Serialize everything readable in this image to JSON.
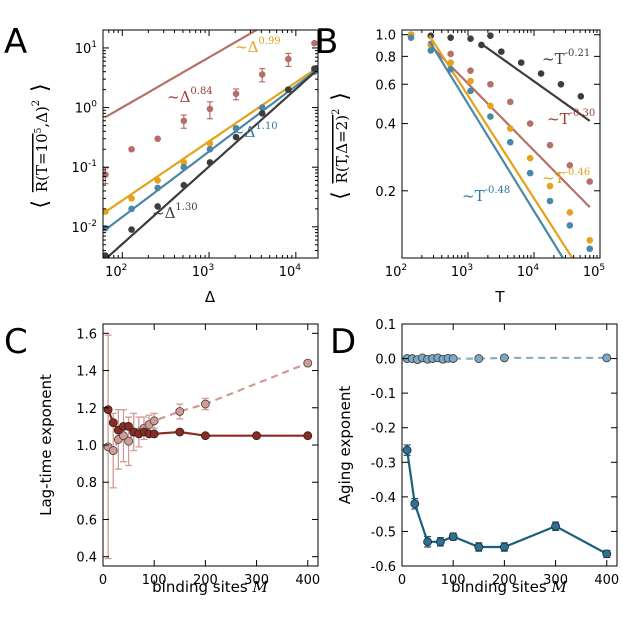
{
  "panels": [
    {
      "id": "A",
      "label": "A",
      "chart_data": {
        "type": "scatter",
        "scale": "log-log",
        "xlabel": "Δ",
        "ylabel": "⟨ R(T=10⁵, Δ)² ⟩",
        "ylabel_parts": [
          "⟨",
          "R(T=10",
          "5",
          ",Δ)",
          "2",
          "⟩"
        ],
        "xlim": [
          60,
          18000
        ],
        "ylim": [
          0.003,
          20
        ],
        "xticks": [
          {
            "v": 100,
            "b": "10",
            "e": "2"
          },
          {
            "v": 1000,
            "b": "10",
            "e": "3"
          },
          {
            "v": 10000,
            "b": "10",
            "e": "4"
          }
        ],
        "yticks": [
          {
            "v": 0.01,
            "b": "10",
            "e": "-2"
          },
          {
            "v": 0.1,
            "b": "10",
            "e": "-1"
          },
          {
            "v": 1,
            "b": "10",
            "e": "0"
          },
          {
            "v": 10,
            "b": "10",
            "e": "1"
          }
        ],
        "series": [
          {
            "name": "~Δ^0.84",
            "color": "#b5706a",
            "x": [
              64,
              128,
              256,
              512,
              1024,
              2048,
              4096,
              8192,
              16384
            ],
            "y": [
              0.075,
              0.2,
              0.3,
              0.6,
              0.95,
              1.7,
              3.6,
              6.5,
              12
            ],
            "yerr_up": [
              0.022,
              0,
              0,
              0.15,
              0.3,
              0.35,
              0.9,
              1.6,
              0
            ],
            "fit": {
              "coef": 0.021,
              "exp": 0.84,
              "x0": 64,
              "x1": 17000
            }
          },
          {
            "name": "~Δ^0.99",
            "color": "#e5a21a",
            "x": [
              64,
              128,
              256,
              512,
              1024,
              2048,
              4096,
              8192,
              16384
            ],
            "y": [
              0.018,
              0.03,
              0.06,
              0.12,
              0.25,
              0.45,
              1.0,
              2.0,
              4.3
            ],
            "yerr_up": [
              0,
              0,
              0,
              0,
              0,
              0,
              0,
              0,
              0
            ],
            "fit": {
              "coef": 0.00029,
              "exp": 0.99,
              "x0": 64,
              "x1": 17000
            }
          },
          {
            "name": "~Δ^1.10",
            "color": "#4a88a8",
            "x": [
              64,
              128,
              256,
              512,
              1024,
              2048,
              4096,
              8192,
              16384
            ],
            "y": [
              0.0095,
              0.02,
              0.045,
              0.1,
              0.2,
              0.45,
              1.0,
              2.0,
              4.0
            ],
            "yerr_up": [
              0,
              0,
              0,
              0,
              0,
              0,
              0,
              0,
              0
            ],
            "fit": {
              "coef": 9.2e-05,
              "exp": 1.1,
              "x0": 64,
              "x1": 17000
            }
          },
          {
            "name": "~Δ^1.30",
            "color": "#3d3d3d",
            "x": [
              64,
              128,
              256,
              512,
              1024,
              2048,
              4096,
              8192,
              16384
            ],
            "y": [
              0.0033,
              0.009,
              0.022,
              0.05,
              0.12,
              0.32,
              0.8,
              2.0,
              4.5
            ],
            "yerr_up": [
              0,
              0,
              0,
              0,
              0,
              0,
              0,
              0,
              0
            ],
            "fit": {
              "coef": 1.29e-05,
              "exp": 1.3,
              "x0": 64,
              "x1": 17000
            }
          }
        ],
        "annotations": [
          {
            "text": "~Δ",
            "exp": "0.84",
            "color": "#9e3a33"
          },
          {
            "text": "~Δ",
            "exp": "0.99",
            "color": "#e5a21a"
          },
          {
            "text": "~Δ",
            "exp": "1.10",
            "color": "#2f7a9e"
          },
          {
            "text": "~Δ",
            "exp": "1.30",
            "color": "#3d3d3d"
          }
        ]
      }
    },
    {
      "id": "B",
      "label": "B",
      "chart_data": {
        "type": "scatter",
        "scale": "log-log",
        "xlabel": "T",
        "ylabel": "⟨ R(T, Δ=2)² ⟩",
        "ylabel_parts": [
          "⟨",
          "R(T,Δ=2)",
          "2",
          "⟩"
        ],
        "xlim": [
          100,
          100000
        ],
        "ylim": [
          0.1,
          1.05
        ],
        "xticks": [
          {
            "v": 100,
            "b": "10",
            "e": "2"
          },
          {
            "v": 1000,
            "b": "10",
            "e": "3"
          },
          {
            "v": 10000,
            "b": "10",
            "e": "4"
          },
          {
            "v": 100000,
            "b": "10",
            "e": "5"
          }
        ],
        "yticks": [
          {
            "v": 0.2,
            "label": "0.2"
          },
          {
            "v": 0.4,
            "label": "0.4"
          },
          {
            "v": 0.6,
            "label": "0.6"
          },
          {
            "v": 0.8,
            "label": "0.8"
          },
          {
            "v": 1.0,
            "label": "1.0"
          }
        ],
        "series": [
          {
            "name": "~T^-0.21",
            "color": "#3d3d3d",
            "x": [
              137,
              273,
              546,
              1092,
              2184
            ],
            "y": [
              1.0,
              0.99,
              0.97,
              0.96,
              0.99
            ],
            "fit": null
          },
          {
            "name": "~T^-0.21 (fit)",
            "color": "#3d3d3d",
            "x": [
              1600,
              3200,
              6400,
              12800,
              25600,
              51200
            ],
            "y": [
              0.9,
              0.84,
              0.75,
              0.67,
              0.6,
              0.53
            ],
            "fit": {
              "coef": 4.28,
              "exp": -0.21,
              "x0": 1500,
              "x1": 70000
            }
          },
          {
            "name": "~T^-0.30",
            "color": "#b5706a",
            "x": [
              137,
              273,
              546,
              1092,
              2184,
              4368,
              8736,
              17472,
              34944,
              69888
            ],
            "y": [
              1.0,
              0.91,
              0.82,
              0.69,
              0.6,
              0.5,
              0.4,
              0.32,
              0.26,
              0.22
            ],
            "fit": {
              "coef": 4.8,
              "exp": -0.3,
              "x0": 260,
              "x1": 70000
            }
          },
          {
            "name": "~T^-0.46",
            "color": "#e5a21a",
            "x": [
              137,
              273,
              546,
              1092,
              2184,
              4368,
              8736,
              17472,
              34944,
              69888
            ],
            "y": [
              1.0,
              0.9,
              0.75,
              0.62,
              0.48,
              0.38,
              0.28,
              0.21,
              0.16,
              0.12
            ],
            "fit": {
              "coef": 12.8,
              "exp": -0.46,
              "x0": 260,
              "x1": 70000
            }
          },
          {
            "name": "~T^-0.48",
            "color": "#4a88a8",
            "x": [
              137,
              273,
              546,
              1092,
              2184,
              4368,
              8736,
              17472,
              34944,
              69888
            ],
            "y": [
              0.97,
              0.85,
              0.7,
              0.56,
              0.43,
              0.33,
              0.24,
              0.18,
              0.14,
              0.11
            ],
            "fit": {
              "coef": 13.5,
              "exp": -0.48,
              "x0": 260,
              "x1": 70000
            }
          }
        ],
        "annotations": [
          {
            "text": "~T",
            "exp": "-0.21",
            "color": "#3d3d3d"
          },
          {
            "text": "~T",
            "exp": "-0.30",
            "color": "#9e3a33"
          },
          {
            "text": "~T",
            "exp": "-0.46",
            "color": "#e5a21a"
          },
          {
            "text": "~T",
            "exp": "-0.48",
            "color": "#2f7a9e"
          }
        ]
      }
    },
    {
      "id": "C",
      "label": "C",
      "chart_data": {
        "type": "line",
        "xlabel": "binding sites M",
        "xlabel_text": "binding sites",
        "xlabel_var": "M",
        "ylabel": "Lag-time exponent",
        "xlim": [
          0,
          420
        ],
        "ylim": [
          0.35,
          1.65
        ],
        "xticks": [
          0,
          100,
          200,
          300,
          400
        ],
        "yticks": [
          "0.4",
          "0.6",
          "0.8",
          "1.0",
          "1.2",
          "1.4",
          "1.6"
        ],
        "series": [
          {
            "name": "solid",
            "style": "solid",
            "color": "#8e2a22",
            "fill": "#8e2a22",
            "alpha": 1,
            "x": [
              10,
              20,
              30,
              40,
              50,
              60,
              70,
              80,
              90,
              100,
              150,
              200,
              300,
              400
            ],
            "y": [
              1.19,
              1.12,
              1.08,
              1.1,
              1.1,
              1.07,
              1.06,
              1.07,
              1.06,
              1.06,
              1.07,
              1.05,
              1.05,
              1.05
            ],
            "yerr": [
              0,
              0,
              0,
              0,
              0,
              0,
              0,
              0,
              0,
              0,
              0,
              0,
              0,
              0
            ]
          },
          {
            "name": "dashed",
            "style": "dashed",
            "color": "#c98a82",
            "fill": "#c98a82",
            "alpha": 0.85,
            "x": [
              10,
              20,
              30,
              40,
              50,
              60,
              70,
              80,
              90,
              100,
              150,
              200,
              400
            ],
            "y": [
              0.99,
              0.97,
              1.03,
              1.05,
              1.02,
              1.07,
              1.07,
              1.09,
              1.11,
              1.13,
              1.18,
              1.22,
              1.44
            ],
            "yerr": [
              0.6,
              0.2,
              0.16,
              0.14,
              0.13,
              0.1,
              0.08,
              0.06,
              0.05,
              0.04,
              0.04,
              0.03,
              0
            ]
          }
        ]
      }
    },
    {
      "id": "D",
      "label": "D",
      "chart_data": {
        "type": "line",
        "xlabel": "binding sites M",
        "xlabel_text": "binding sites",
        "xlabel_var": "M",
        "ylabel": "Aging exponent",
        "xlim": [
          0,
          420
        ],
        "ylim": [
          -0.6,
          0.1
        ],
        "xticks": [
          0,
          100,
          200,
          300,
          400
        ],
        "yticks": [
          "0.1",
          "0.0",
          "-0.1",
          "-0.2",
          "-0.3",
          "-0.4",
          "-0.5",
          "-0.6"
        ],
        "series": [
          {
            "name": "solid",
            "style": "solid",
            "color": "#1a5f80",
            "fill": "#2e7194",
            "alpha": 1,
            "x": [
              10,
              25,
              50,
              75,
              100,
              150,
              200,
              300,
              400
            ],
            "y": [
              -0.265,
              -0.42,
              -0.53,
              -0.53,
              -0.515,
              -0.545,
              -0.545,
              -0.485,
              -0.565
            ],
            "yerr": [
              0.015,
              0.015,
              0.015,
              0.012,
              0.01,
              0.012,
              0.012,
              0.012,
              0.01
            ]
          },
          {
            "name": "dashed",
            "style": "dashed",
            "color": "#7fa8c2",
            "fill": "#6d9fbe",
            "alpha": 0.9,
            "x": [
              10,
              20,
              30,
              40,
              50,
              60,
              70,
              80,
              90,
              100,
              150,
              200,
              400
            ],
            "y": [
              0.0,
              0.0,
              -0.003,
              0.002,
              -0.002,
              0.0,
              0.002,
              -0.002,
              0.001,
              0.0,
              0.0,
              0.002,
              0.002
            ],
            "yerr": [
              0.008,
              0.006,
              0.006,
              0.005,
              0.005,
              0.005,
              0.004,
              0.004,
              0.004,
              0.004,
              0.004,
              0.004,
              0.004
            ]
          }
        ]
      }
    }
  ]
}
